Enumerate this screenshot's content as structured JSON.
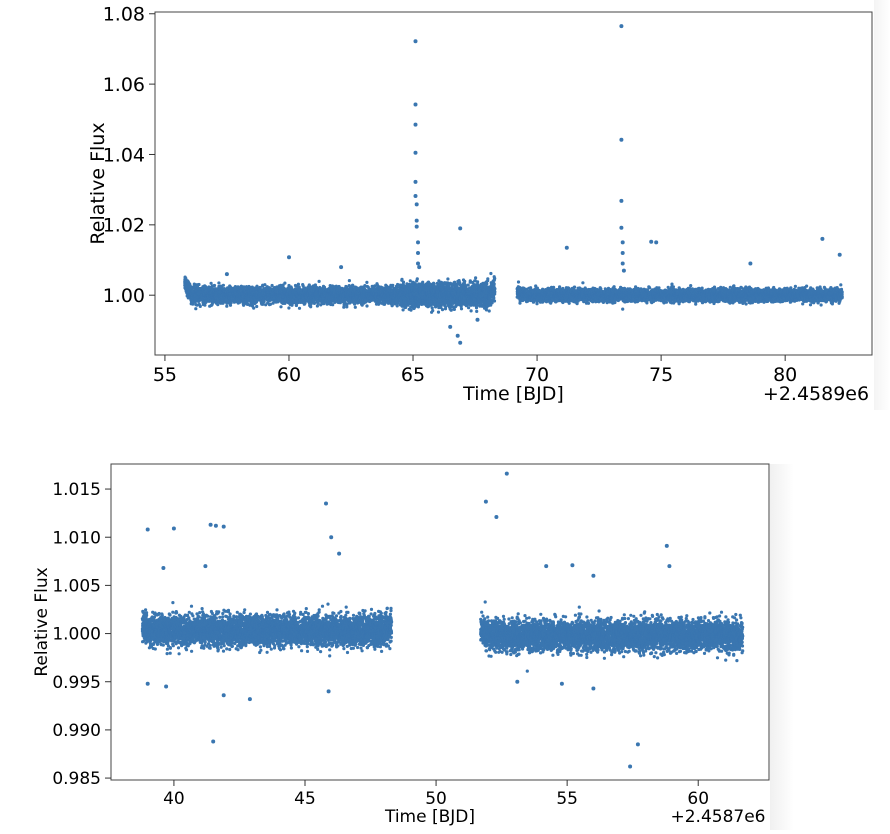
{
  "chart_data": [
    {
      "type": "scatter",
      "title": "",
      "xlabel": "Time [BJD]",
      "ylabel": "Relative Flux",
      "offset_label": "+2.4589e6",
      "xlim": [
        54.6,
        83.5
      ],
      "ylim": [
        0.983,
        1.0805
      ],
      "xticks": [
        55,
        60,
        65,
        70,
        75,
        80
      ],
      "yticks": [
        1.0,
        1.02,
        1.04,
        1.06,
        1.08
      ],
      "ytick_format": 2,
      "color": "#3a76b0",
      "segments": [
        {
          "x_start": 55.8,
          "x_end": 68.3,
          "center": 1.0,
          "scatter": 0.002,
          "edge_bump_left": 0.004,
          "edge_bump_right": 0.002,
          "noisy_zone": [
            64.5,
            68.3
          ]
        },
        {
          "x_start": 69.2,
          "x_end": 82.3,
          "center": 1.0,
          "scatter": 0.0015,
          "edge_bump_left": 0.001,
          "edge_bump_right": 0.0
        }
      ],
      "outliers": [
        [
          65.1,
          1.0722
        ],
        [
          65.1,
          1.0542
        ],
        [
          65.1,
          1.0485
        ],
        [
          65.1,
          1.0405
        ],
        [
          65.1,
          1.0322
        ],
        [
          65.1,
          1.0282
        ],
        [
          65.15,
          1.0258
        ],
        [
          65.15,
          1.0212
        ],
        [
          65.15,
          1.0195
        ],
        [
          65.2,
          1.015
        ],
        [
          65.2,
          1.012
        ],
        [
          65.2,
          1.009
        ],
        [
          65.25,
          1.008
        ],
        [
          73.4,
          1.0765
        ],
        [
          73.4,
          1.0442
        ],
        [
          73.4,
          1.0268
        ],
        [
          73.4,
          1.0192
        ],
        [
          73.45,
          1.015
        ],
        [
          73.45,
          1.012
        ],
        [
          73.45,
          1.009
        ],
        [
          73.5,
          1.007
        ],
        [
          66.9,
          1.019
        ],
        [
          60.0,
          1.0108
        ],
        [
          81.5,
          1.016
        ],
        [
          82.2,
          1.0115
        ],
        [
          74.6,
          1.0152
        ],
        [
          74.8,
          1.015
        ],
        [
          71.2,
          1.0135
        ],
        [
          78.6,
          1.009
        ],
        [
          57.5,
          1.006
        ],
        [
          62.1,
          1.008
        ],
        [
          66.8,
          0.9885
        ],
        [
          66.9,
          0.9865
        ],
        [
          66.5,
          0.991
        ],
        [
          67.6,
          0.993
        ]
      ]
    },
    {
      "type": "scatter",
      "title": "",
      "xlabel": "Time [BJD]",
      "ylabel": "Relative Flux",
      "offset_label": "+2.4587e6",
      "xlim": [
        37.6,
        62.7
      ],
      "ylim": [
        0.9848,
        1.0176
      ],
      "xticks": [
        40,
        45,
        50,
        55,
        60
      ],
      "yticks": [
        0.985,
        0.99,
        0.995,
        1.0,
        1.005,
        1.01,
        1.015
      ],
      "ytick_format": 3,
      "color": "#3a76b0",
      "segments": [
        {
          "x_start": 38.8,
          "x_end": 48.3,
          "center": 1.0003,
          "scatter": 0.0014,
          "edge_bump_left": 0.0008,
          "edge_bump_right": 0.0005
        },
        {
          "x_start": 51.7,
          "x_end": 61.7,
          "center": 0.9998,
          "scatter": 0.0014,
          "edge_bump_left": 0.0006,
          "edge_bump_right": 0.0
        }
      ],
      "outliers": [
        [
          39.0,
          1.0108
        ],
        [
          40.0,
          1.0109
        ],
        [
          41.4,
          1.0113
        ],
        [
          41.6,
          1.0112
        ],
        [
          41.9,
          1.0111
        ],
        [
          45.8,
          1.0135
        ],
        [
          46.0,
          1.01
        ],
        [
          46.3,
          1.0083
        ],
        [
          41.2,
          1.007
        ],
        [
          39.6,
          1.0068
        ],
        [
          52.7,
          1.0166
        ],
        [
          51.9,
          1.0137
        ],
        [
          52.3,
          1.0121
        ],
        [
          54.2,
          1.007
        ],
        [
          55.2,
          1.0071
        ],
        [
          58.8,
          1.0091
        ],
        [
          58.9,
          1.007
        ],
        [
          56.0,
          1.006
        ],
        [
          57.7,
          0.9885
        ],
        [
          57.4,
          0.9862
        ],
        [
          41.5,
          0.9888
        ],
        [
          42.9,
          0.9932
        ],
        [
          41.9,
          0.9936
        ],
        [
          39.0,
          0.9948
        ],
        [
          39.7,
          0.9945
        ],
        [
          45.9,
          0.994
        ],
        [
          53.1,
          0.995
        ],
        [
          56.0,
          0.9943
        ],
        [
          54.8,
          0.9948
        ]
      ]
    }
  ]
}
